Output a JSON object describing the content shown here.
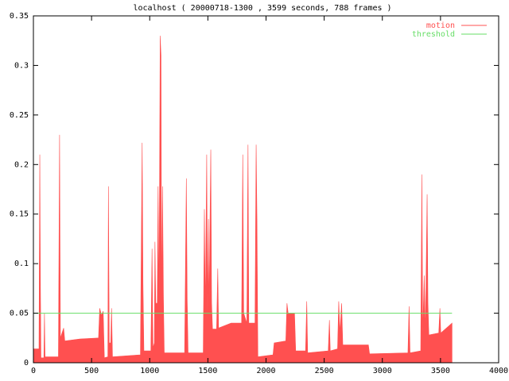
{
  "chart_data": {
    "type": "area",
    "title": "localhost ( 20000718-1300 , 3599 seconds, 788 frames )",
    "xlim": [
      0,
      4000
    ],
    "xticks": [
      0,
      500,
      1000,
      1500,
      2000,
      2500,
      3000,
      3500,
      4000
    ],
    "ylim": [
      0,
      0.35
    ],
    "yticks": [
      0,
      0.05,
      0.1,
      0.15,
      0.2,
      0.25,
      0.3,
      0.35
    ],
    "grid": false,
    "legend": "top-right",
    "series": [
      {
        "name": "motion",
        "color": "#ff5050",
        "fill": true,
        "x": [
          0,
          40,
          48,
          55,
          60,
          65,
          90,
          95,
          100,
          215,
          225,
          232,
          260,
          270,
          400,
          560,
          570,
          585,
          600,
          610,
          640,
          645,
          652,
          665,
          672,
          680,
          920,
          935,
          942,
          950,
          1010,
          1020,
          1028,
          1040,
          1045,
          1052,
          1065,
          1072,
          1080,
          1090,
          1097,
          1102,
          1110,
          1118,
          1125,
          1300,
          1315,
          1322,
          1330,
          1460,
          1470,
          1478,
          1490,
          1497,
          1505,
          1510,
          1525,
          1532,
          1540,
          1575,
          1585,
          1592,
          1700,
          1790,
          1800,
          1808,
          1835,
          1845,
          1852,
          1905,
          1915,
          1922,
          1930,
          2060,
          2070,
          2170,
          2180,
          2190,
          2245,
          2255,
          2340,
          2350,
          2358,
          2535,
          2545,
          2552,
          2615,
          2625,
          2635,
          2650,
          2660,
          2880,
          2890,
          3220,
          3230,
          3238,
          3330,
          3340,
          3347,
          3360,
          3370,
          3385,
          3392,
          3400,
          3485,
          3495,
          3502,
          3580,
          3599
        ],
        "values": [
          0.014,
          0.014,
          0.014,
          0.21,
          0.083,
          0.005,
          0.005,
          0.05,
          0.006,
          0.006,
          0.23,
          0.025,
          0.035,
          0.022,
          0.024,
          0.025,
          0.055,
          0.048,
          0.052,
          0.005,
          0.006,
          0.178,
          0.02,
          0.02,
          0.055,
          0.006,
          0.008,
          0.222,
          0.08,
          0.012,
          0.012,
          0.115,
          0.015,
          0.02,
          0.122,
          0.06,
          0.06,
          0.178,
          0.06,
          0.33,
          0.31,
          0.06,
          0.178,
          0.065,
          0.01,
          0.01,
          0.186,
          0.065,
          0.01,
          0.01,
          0.155,
          0.05,
          0.21,
          0.05,
          0.145,
          0.05,
          0.215,
          0.06,
          0.034,
          0.034,
          0.095,
          0.035,
          0.04,
          0.04,
          0.21,
          0.05,
          0.04,
          0.22,
          0.04,
          0.04,
          0.22,
          0.145,
          0.006,
          0.008,
          0.02,
          0.022,
          0.06,
          0.05,
          0.05,
          0.012,
          0.012,
          0.062,
          0.01,
          0.012,
          0.043,
          0.012,
          0.014,
          0.062,
          0.03,
          0.06,
          0.018,
          0.018,
          0.009,
          0.01,
          0.057,
          0.01,
          0.012,
          0.19,
          0.03,
          0.088,
          0.03,
          0.17,
          0.06,
          0.028,
          0.03,
          0.055,
          0.03,
          0.038,
          0.04
        ]
      },
      {
        "name": "threshold",
        "color": "#66dd66",
        "fill": false,
        "x": [
          0,
          3599
        ],
        "values": [
          0.05,
          0.05
        ]
      }
    ]
  }
}
